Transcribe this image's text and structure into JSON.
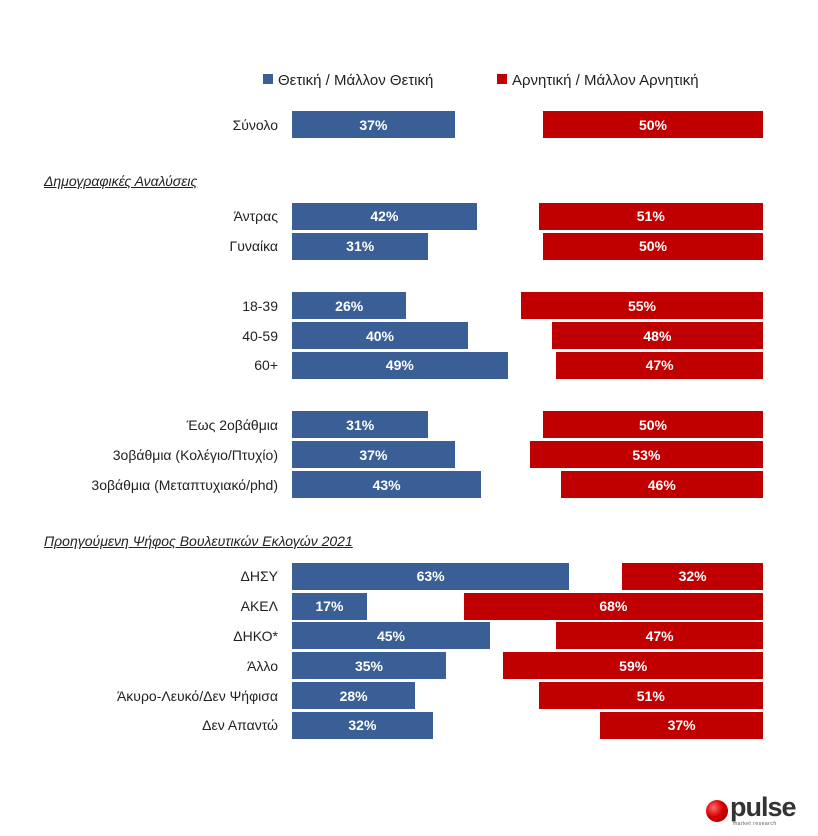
{
  "chart_data": {
    "type": "bar",
    "orientation": "horizontal",
    "layout": "diverging",
    "legend_position": "top",
    "series": [
      {
        "name": "Θετική / Μάλλον Θετική",
        "color": "#3a5f96"
      },
      {
        "name": "Αρνητική / Μάλλον  Αρνητική",
        "color": "#c00000"
      }
    ],
    "groups": [
      {
        "title": "",
        "rows": [
          {
            "label": "Σύνολο",
            "positive": 37,
            "negative": 50
          }
        ]
      },
      {
        "title": "Δημογραφικές Αναλύσεις",
        "rows": [
          {
            "label": "Άντρας",
            "positive": 42,
            "negative": 51
          },
          {
            "label": "Γυναίκα",
            "positive": 31,
            "negative": 50
          },
          {
            "label": "18-39",
            "positive": 26,
            "negative": 55,
            "gap_before": true
          },
          {
            "label": "40-59",
            "positive": 40,
            "negative": 48
          },
          {
            "label": "60+",
            "positive": 49,
            "negative": 47
          },
          {
            "label": "Έως 2οβάθμια",
            "positive": 31,
            "negative": 50,
            "gap_before": true
          },
          {
            "label": "3οβάθμια (Κολέγιο/Πτυχίο)",
            "positive": 37,
            "negative": 53
          },
          {
            "label": "3οβάθμια (Μεταπτυχιακό/phd)",
            "positive": 43,
            "negative": 46
          }
        ]
      },
      {
        "title": "Προηγούμενη Ψήφος Βουλευτικών Εκλογών 2021",
        "rows": [
          {
            "label": "ΔΗΣΥ",
            "positive": 63,
            "negative": 32
          },
          {
            "label": "ΑΚΕΛ",
            "positive": 17,
            "negative": 68
          },
          {
            "label": "ΔΗΚΟ*",
            "positive": 45,
            "negative": 47
          },
          {
            "label": "Άλλο",
            "positive": 35,
            "negative": 59
          },
          {
            "label": "Άκυρο-Λευκό/Δεν Ψήφισα",
            "positive": 28,
            "negative": 51
          },
          {
            "label": "Δεν Απαντώ",
            "positive": 32,
            "negative": 37
          }
        ]
      }
    ]
  },
  "branding": {
    "logo_text": "pulse",
    "logo_tagline": "market research"
  }
}
